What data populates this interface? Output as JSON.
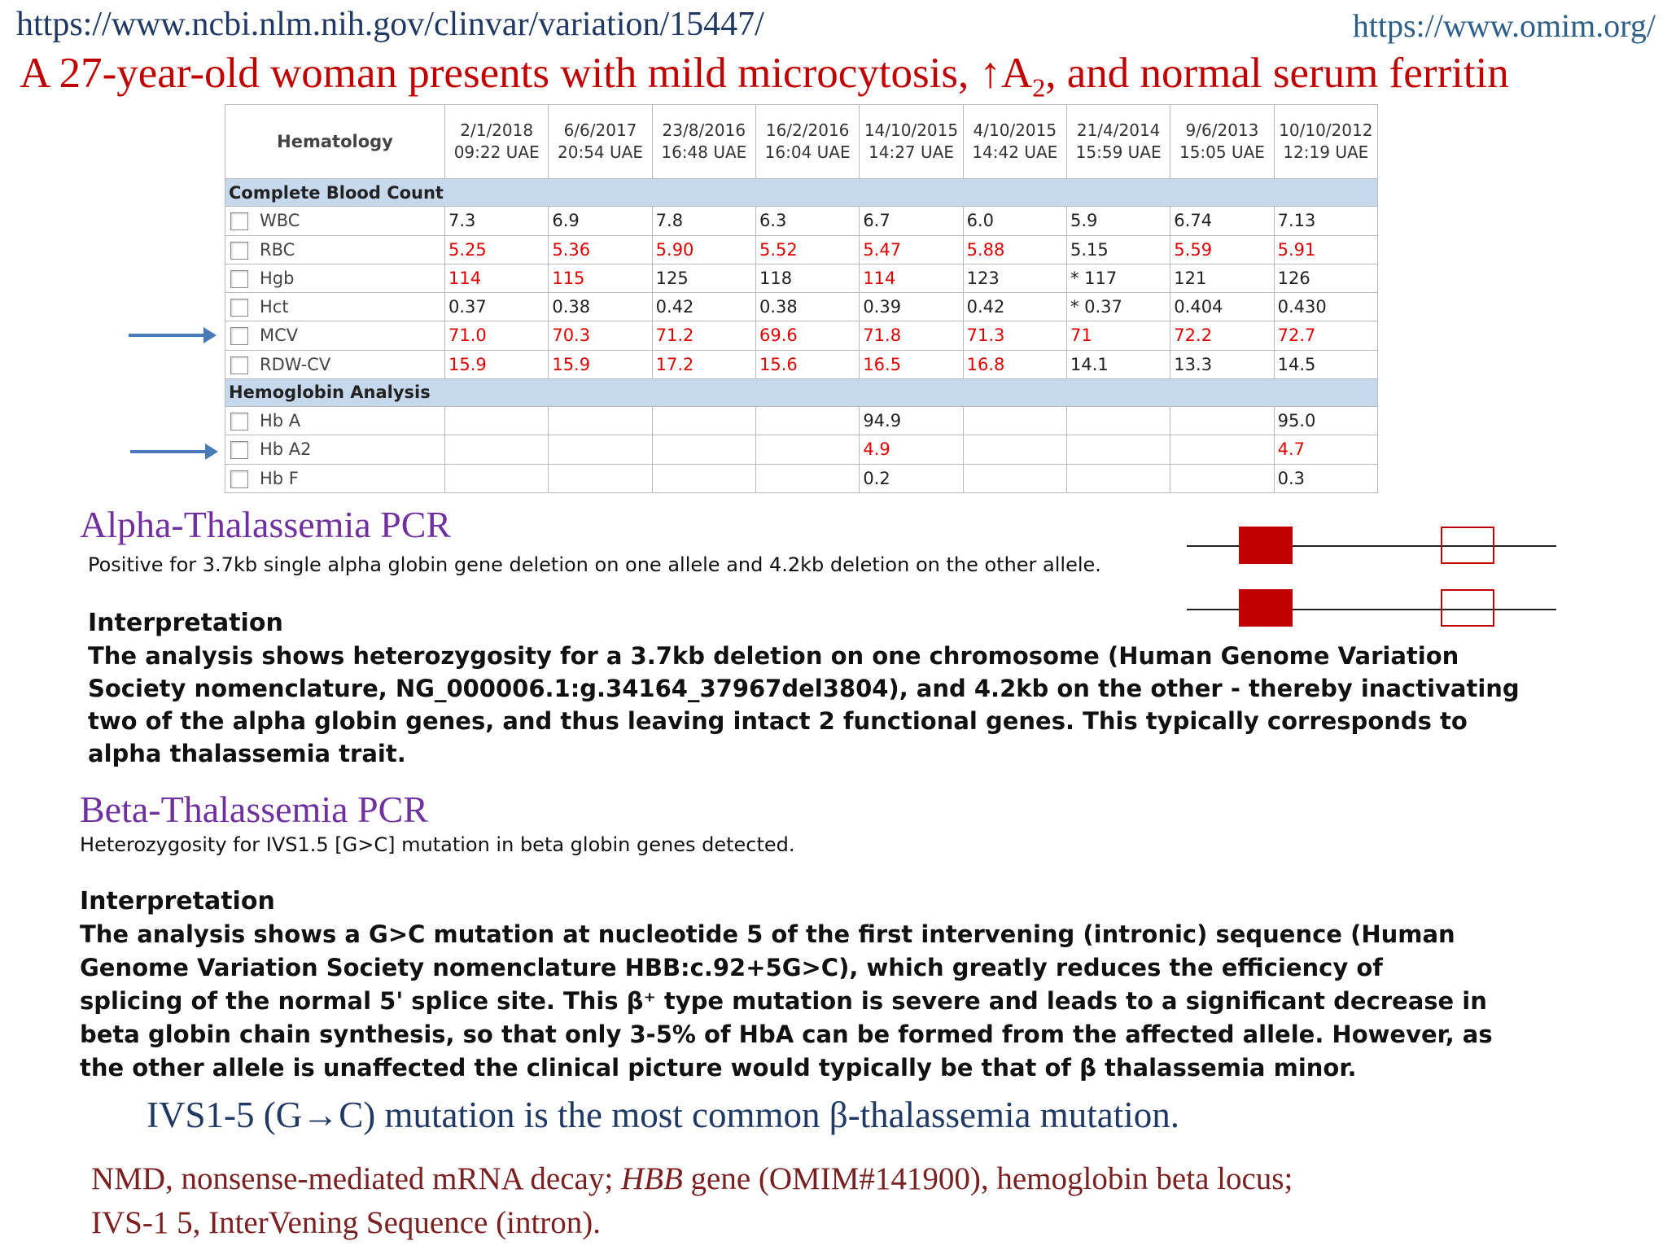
{
  "urls": {
    "clinvar": "https://www.ncbi.nlm.nih.gov/clinvar/variation/15447/",
    "omim": "https://www.omim.org/"
  },
  "title": {
    "main": "A 27-year-old woman presents with mild microcytosis, ↑A",
    "sub": "2",
    "tail": ", and normal serum ferritin"
  },
  "table": {
    "header_label": "Hematology",
    "columns": [
      {
        "date": "2/1/2018",
        "time": "09:22 UAE"
      },
      {
        "date": "6/6/2017",
        "time": "20:54 UAE"
      },
      {
        "date": "23/8/2016",
        "time": "16:48 UAE"
      },
      {
        "date": "16/2/2016",
        "time": "16:04 UAE"
      },
      {
        "date": "14/10/2015",
        "time": "14:27 UAE"
      },
      {
        "date": "4/10/2015",
        "time": "14:42 UAE"
      },
      {
        "date": "21/4/2014",
        "time": "15:59 UAE"
      },
      {
        "date": "9/6/2013",
        "time": "15:05 UAE"
      },
      {
        "date": "10/10/2012",
        "time": "12:19 UAE"
      }
    ],
    "sections": [
      {
        "title": "Complete Blood Count",
        "rows": [
          {
            "name": "WBC",
            "values": [
              "7.3",
              "6.9",
              "7.8",
              "6.3",
              "6.7",
              "6.0",
              "5.9",
              "6.74",
              "7.13"
            ],
            "flags": [
              0,
              0,
              0,
              0,
              0,
              0,
              0,
              0,
              0
            ]
          },
          {
            "name": "RBC",
            "values": [
              "5.25",
              "5.36",
              "5.90",
              "5.52",
              "5.47",
              "5.88",
              "5.15",
              "5.59",
              "5.91"
            ],
            "flags": [
              1,
              1,
              1,
              1,
              1,
              1,
              0,
              1,
              1
            ]
          },
          {
            "name": "Hgb",
            "values": [
              "114",
              "115",
              "125",
              "118",
              "114",
              "123",
              "* 117",
              "121",
              "126"
            ],
            "flags": [
              1,
              1,
              0,
              0,
              1,
              0,
              0,
              0,
              0
            ]
          },
          {
            "name": "Hct",
            "values": [
              "0.37",
              "0.38",
              "0.42",
              "0.38",
              "0.39",
              "0.42",
              "* 0.37",
              "0.404",
              "0.430"
            ],
            "flags": [
              0,
              0,
              0,
              0,
              0,
              0,
              0,
              0,
              0
            ]
          },
          {
            "name": "MCV",
            "values": [
              "71.0",
              "70.3",
              "71.2",
              "69.6",
              "71.8",
              "71.3",
              "71",
              "72.2",
              "72.7"
            ],
            "flags": [
              1,
              1,
              1,
              1,
              1,
              1,
              1,
              1,
              1
            ]
          },
          {
            "name": "RDW-CV",
            "values": [
              "15.9",
              "15.9",
              "17.2",
              "15.6",
              "16.5",
              "16.8",
              "14.1",
              "13.3",
              "14.5"
            ],
            "flags": [
              1,
              1,
              1,
              1,
              1,
              1,
              0,
              0,
              0
            ]
          }
        ]
      },
      {
        "title": "Hemoglobin Analysis",
        "rows": [
          {
            "name": "Hb A",
            "values": [
              "",
              "",
              "",
              "",
              "94.9",
              "",
              "",
              "",
              "95.0"
            ],
            "flags": [
              0,
              0,
              0,
              0,
              0,
              0,
              0,
              0,
              0
            ]
          },
          {
            "name": "Hb A2",
            "values": [
              "",
              "",
              "",
              "",
              "4.9",
              "",
              "",
              "",
              "4.7"
            ],
            "flags": [
              0,
              0,
              0,
              0,
              1,
              0,
              0,
              0,
              1
            ]
          },
          {
            "name": "Hb F",
            "values": [
              "",
              "",
              "",
              "",
              "0.2",
              "",
              "",
              "",
              "0.3"
            ],
            "flags": [
              0,
              0,
              0,
              0,
              0,
              0,
              0,
              0,
              0
            ]
          }
        ]
      }
    ]
  },
  "alpha": {
    "heading": "Alpha-Thalassemia PCR",
    "result": "Positive for 3.7kb single alpha globin gene deletion on one allele and 4.2kb deletion on the other allele.",
    "interp_heading": "Interpretation",
    "interp_lines": [
      "The analysis shows heterozygosity for a 3.7kb deletion on one chromosome (Human Genome Variation",
      "Society nomenclature, NG_000006.1:g.34164_37967del3804), and 4.2kb on the other - thereby inactivating",
      "two of the alpha globin genes, and thus leaving intact 2 functional genes. This typically corresponds to",
      "alpha thalassemia trait."
    ]
  },
  "beta": {
    "heading": "Beta-Thalassemia PCR",
    "result": "Heterozygosity for IVS1.5 [G>C] mutation in beta globin genes detected.",
    "interp_heading": "Interpretation",
    "interp_lines": [
      "The analysis shows a G>C mutation at nucleotide 5 of the first intervening (intronic) sequence (Human",
      "Genome Variation Society nomenclature HBB:c.92+5G>C), which greatly reduces the efficiency of",
      "splicing of the normal 5' splice site. This β⁺ type mutation is severe and leads to a significant decrease in",
      "beta globin chain synthesis, so that only 3-5% of HbA can be formed from the affected allele. However, as",
      "the other allele is unaffected the clinical picture would typically be that of β thalassemia minor."
    ]
  },
  "note": "IVS1-5 (G→C) mutation is the most common β-thalassemia mutation.",
  "footnote": {
    "l1_a": "NMD, nonsense-mediated mRNA decay; ",
    "l1_gene": "HBB",
    "l1_b": " gene (OMIM#141900), hemoglobin beta locus;",
    "l2": "IVS-1 5, InterVening Sequence (intron)."
  },
  "colors": {
    "title": "#c00000",
    "heading": "#7030a0",
    "flag": "#e00000",
    "section_bg": "#c6d9ec",
    "arrow": "#4a7ab5"
  }
}
